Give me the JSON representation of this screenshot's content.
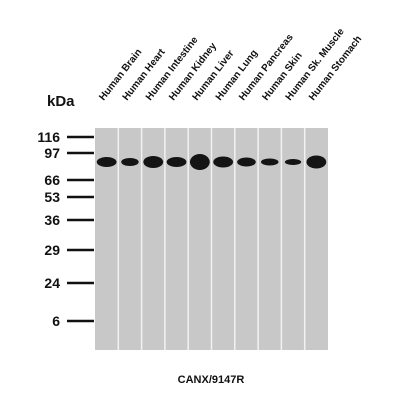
{
  "ladder_unit": "kDa",
  "lanes": [
    "Human Brain",
    "Human Heart",
    "Human Intestine",
    "Human Kidney",
    "Human Liver",
    "Human Lung",
    "Human Pancreas",
    "Human Skin",
    "Human Sk. Muscle",
    "Human Stomach"
  ],
  "markers": [
    "116",
    "97",
    "66",
    "53",
    "36",
    "29",
    "24",
    "6"
  ],
  "caption": "CANX/9147R"
}
